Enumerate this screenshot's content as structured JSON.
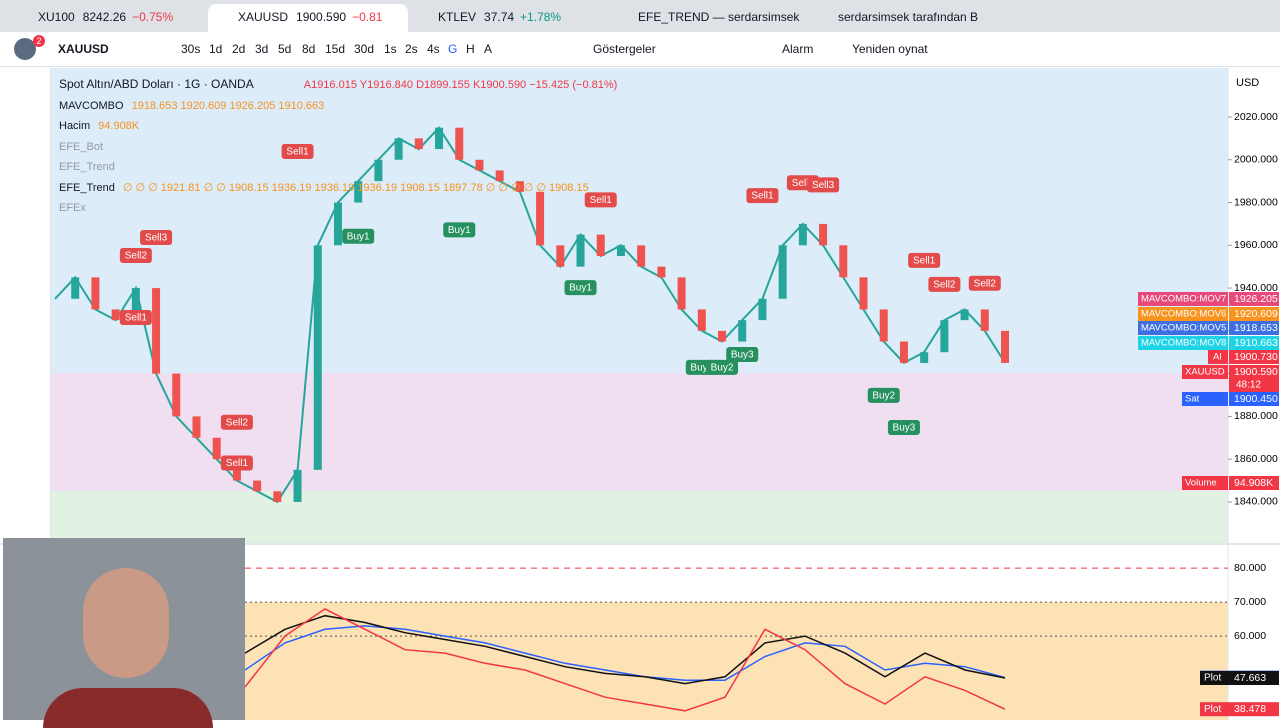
{
  "tabs": [
    {
      "label": "XU100",
      "price": "8242.26",
      "change": "−0.75%"
    },
    {
      "label": "XAUUSD",
      "price": "1900.590",
      "change": "−0.81"
    },
    {
      "label": "KTLEV",
      "price": "37.74",
      "change": "+1.78%"
    },
    {
      "label": "EFE_TREND — serdarsimsek"
    },
    {
      "label": "serdarsimsek tarafından B"
    }
  ],
  "toolbar": {
    "badge": "2",
    "symbol": "XAUUSD",
    "intervals": [
      "30s",
      "1d",
      "2d",
      "3d",
      "5d",
      "8d",
      "15d",
      "30d",
      "1s",
      "2s",
      "4s",
      "G",
      "H",
      "A"
    ],
    "indicators": "Göstergeler",
    "alarm": "Alarm",
    "replay": "Yeniden oynat",
    "currency": "USD"
  },
  "legend": {
    "title": "Spot Altın/ABD Doları · 1G · OANDA",
    "ohlc": "A1916.015  Y1916.840  D1899.155  K1900.590  −15.425 (−0.81%)",
    "rows": [
      {
        "name": "MAVCOMBO",
        "values": "1918.653  1920.609  1926.205  1910.663"
      },
      {
        "name": "Hacim",
        "values": "94.908K"
      },
      {
        "name": "EFE_Bot"
      },
      {
        "name": "EFE_Trend"
      },
      {
        "name": "EFE_Trend",
        "values": "∅ ∅ ∅ 1921.81 ∅ ∅ 1908.15 1936.19 1936.19 1936.19 1908.15 1897.78 ∅ ∅ ∅ ∅ ∅ 1908.15"
      },
      {
        "name": "EFEx"
      }
    ]
  },
  "chart_data": [
    {
      "type": "line",
      "color": "#26a69a",
      "values": [
        1935,
        1945,
        1930,
        1925,
        1940,
        1900,
        1880,
        1870,
        1860,
        1850,
        1845,
        1840,
        1855,
        1960,
        1980,
        1990,
        2000,
        2010,
        2005,
        2015,
        2000,
        1995,
        1990,
        1985,
        1960,
        1950,
        1965,
        1955,
        1960,
        1950,
        1945,
        1930,
        1920,
        1915,
        1925,
        1935,
        1960,
        1970,
        1960,
        1945,
        1930,
        1915,
        1905,
        1910,
        1925,
        1930,
        1920,
        1905
      ],
      "ylim": [
        1820.8,
        2042.9
      ],
      "yticks": [
        {
          "value": 2020,
          "label": "2020.000"
        },
        {
          "value": 2000,
          "label": "2000.000"
        },
        {
          "value": 1980,
          "label": "1980.000"
        },
        {
          "value": 1960,
          "label": "1960.000"
        },
        {
          "value": 1940,
          "label": "1940.000"
        },
        {
          "value": 1920,
          "label": "1920.000"
        },
        {
          "value": 1900,
          "label": "1900.000"
        },
        {
          "value": 1880,
          "label": "1880.000"
        },
        {
          "value": 1860,
          "label": "1860.000"
        },
        {
          "value": 1840,
          "label": "1840.000"
        }
      ],
      "signals": [
        {
          "label": "Sell1",
          "x": 12,
          "y": 2003.6
        },
        {
          "label": "Sell2",
          "x": 4,
          "y": 1955
        },
        {
          "label": "Sell3",
          "x": 5,
          "y": 1963.4
        },
        {
          "label": "Sell1",
          "x": 4,
          "y": 1926
        },
        {
          "label": "Sell2",
          "x": 9,
          "y": 1877
        },
        {
          "label": "Sell1",
          "x": 9,
          "y": 1858
        },
        {
          "label": "Buy1",
          "x": 15,
          "y": 1964
        },
        {
          "label": "Buy1",
          "x": 20,
          "y": 1967
        },
        {
          "label": "Sell1",
          "x": 27,
          "y": 1981
        },
        {
          "label": "Buy1",
          "x": 26,
          "y": 1940
        },
        {
          "label": "Sell1",
          "x": 35,
          "y": 1983
        },
        {
          "label": "Sell2",
          "x": 37,
          "y": 1989
        },
        {
          "label": "Sell3",
          "x": 38,
          "y": 1988
        },
        {
          "label": "Buy1",
          "x": 32,
          "y": 1902.7
        },
        {
          "label": "Buy2",
          "x": 33,
          "y": 1902.7
        },
        {
          "label": "Buy3",
          "x": 34,
          "y": 1908.7
        },
        {
          "label": "Sell1",
          "x": 43,
          "y": 1952.7
        },
        {
          "label": "Sell2",
          "x": 44,
          "y": 1941.5
        },
        {
          "label": "Sell2",
          "x": 46,
          "y": 1942
        },
        {
          "label": "Buy2",
          "x": 41,
          "y": 1889.6
        },
        {
          "label": "Buy3",
          "x": 42,
          "y": 1874.6
        }
      ],
      "axis_labels": [
        {
          "name": "MAVCOMBO:MOV7",
          "value": "1926.205",
          "color": "#e8497a"
        },
        {
          "name": "MAVCOMBO:MOV6",
          "value": "1920.609",
          "color": "#f7931e"
        },
        {
          "name": "MAVCOMBO:MOV5",
          "value": "1918.653",
          "color": "#3d6fe0"
        },
        {
          "name": "MAVCOMBO:MOV8",
          "value": "1910.663",
          "color": "#1ed3e6"
        },
        {
          "name": "Al",
          "value": "1900.730",
          "color": "#f23645"
        },
        {
          "name": "XAUUSD",
          "value": "1900.590",
          "color": "#f23645"
        },
        {
          "name": "Sat",
          "value": "1900.450",
          "color": "#2962ff"
        },
        {
          "name": "Volume",
          "value": "94.908K",
          "color": "#f23645"
        }
      ],
      "countdown": "48:12"
    },
    {
      "type": "line",
      "ylim": [
        35.3,
        86.8
      ],
      "yticks": [
        {
          "value": 80,
          "label": "80.000"
        },
        {
          "value": 70,
          "label": "70.000"
        },
        {
          "value": 60,
          "label": "60.000"
        }
      ],
      "series": [
        {
          "name": "Plot",
          "color": "#2962ff",
          "values": [
            50,
            58,
            62,
            63,
            62,
            60,
            58,
            55,
            52,
            50,
            48,
            47,
            47,
            54,
            58,
            57,
            50,
            52,
            51,
            47.768
          ]
        },
        {
          "name": "Plot",
          "color": "#111111",
          "values": [
            55,
            62,
            66,
            64,
            61,
            59,
            57,
            54,
            51,
            49,
            48,
            46,
            48,
            58,
            60,
            55,
            48,
            55,
            50,
            47.663
          ]
        },
        {
          "name": "Plot",
          "color": "#f23645",
          "values": [
            45,
            60,
            68,
            62,
            56,
            55,
            52,
            50,
            46,
            42,
            40,
            38,
            42,
            62,
            56,
            46,
            40,
            48,
            44,
            38.478
          ]
        }
      ]
    }
  ]
}
